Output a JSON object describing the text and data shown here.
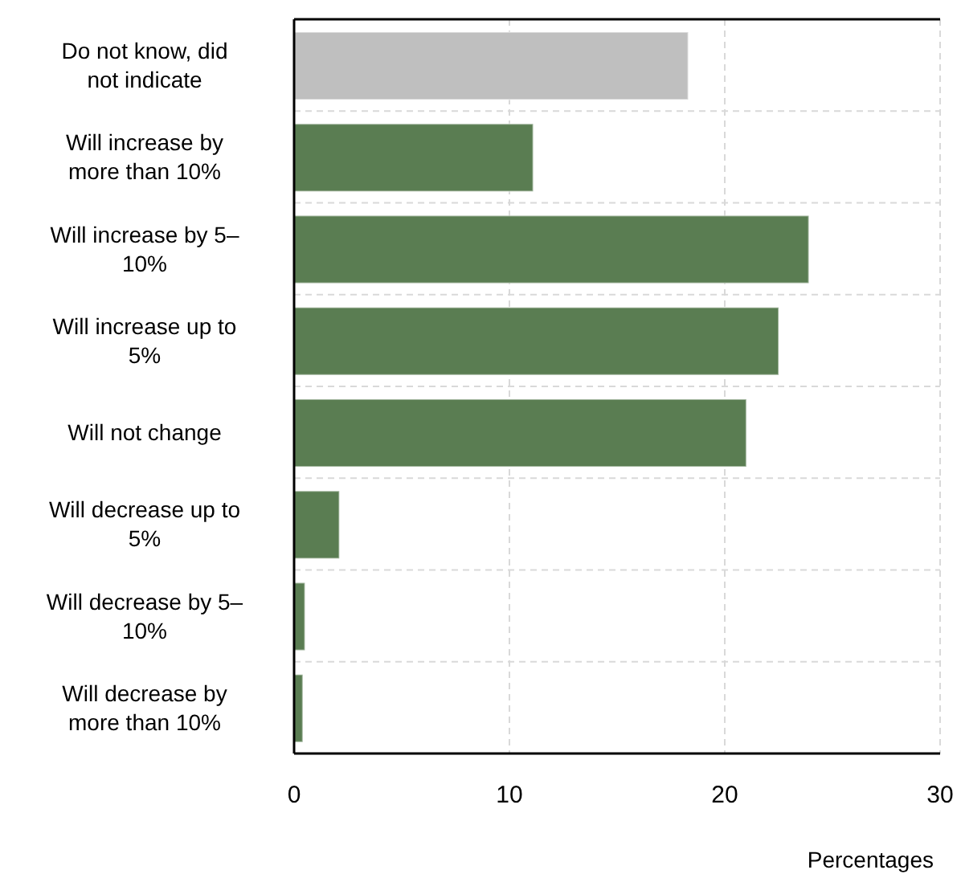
{
  "chart_data": {
    "type": "bar",
    "orientation": "horizontal",
    "xlabel": "Percentages",
    "categories": [
      "Do not know, did not indicate",
      "Will increase by more than 10%",
      "Will increase by 5–10%",
      "Will increase up to 5%",
      "Will not change",
      "Will decrease up to 5%",
      "Will decrease by 5–10%",
      "Will decrease by more than 10%"
    ],
    "values": [
      18.3,
      11.1,
      23.9,
      22.5,
      21.0,
      2.1,
      0.5,
      0.4
    ],
    "colors": [
      "#bfbfbf",
      "#5a7d52",
      "#5a7d52",
      "#5a7d52",
      "#5a7d52",
      "#5a7d52",
      "#5a7d52",
      "#5a7d52"
    ],
    "xlim": [
      0,
      30
    ],
    "xticks": [
      0,
      10,
      20,
      30
    ],
    "grid": true
  }
}
